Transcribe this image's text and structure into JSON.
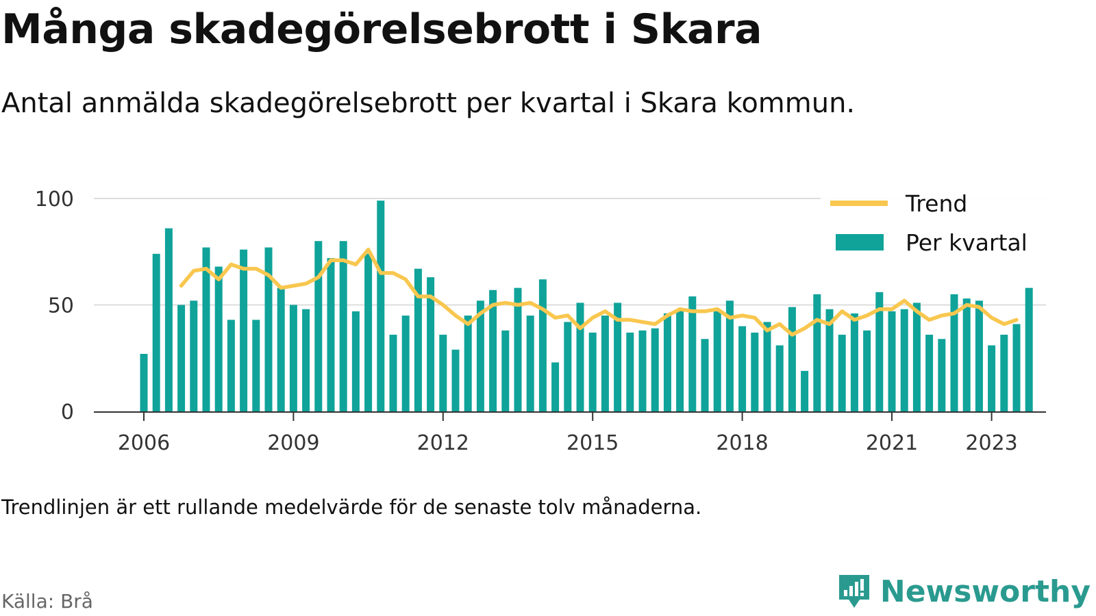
{
  "header": {
    "title": "Många skadegörelsebrott i Skara",
    "subtitle": "Antal anmälda skadegörelsebrott per kvartal i Skara kommun."
  },
  "footer": {
    "note": "Trendlinjen är ett rullande medelvärde för de senaste tolv månaderna.",
    "source": "Källa: Brå",
    "brand": "Newsworthy"
  },
  "colors": {
    "bars": "#0fa39a",
    "trend": "#f9c74f",
    "grid": "#dddddd",
    "axis": "#333333",
    "brand": "#2a9a8f"
  },
  "chart_data": {
    "type": "bar",
    "x_unit": "quarter",
    "x_start": "2006 Q1",
    "ylim": [
      0,
      100
    ],
    "yticks": [
      0,
      50,
      100
    ],
    "xticks": [
      "2006",
      "2009",
      "2012",
      "2015",
      "2018",
      "2021",
      "2023"
    ],
    "grid": "horizontal",
    "legend_position": "top-right",
    "series": [
      {
        "name": "Per kvartal",
        "type": "bar",
        "values": [
          27,
          74,
          86,
          50,
          52,
          77,
          68,
          43,
          76,
          43,
          77,
          58,
          50,
          48,
          80,
          72,
          80,
          47,
          74,
          99,
          36,
          45,
          67,
          63,
          36,
          29,
          45,
          52,
          57,
          38,
          58,
          45,
          62,
          23,
          42,
          51,
          37,
          45,
          51,
          37,
          38,
          39,
          46,
          48,
          54,
          34,
          47,
          52,
          40,
          37,
          42,
          31,
          49,
          19,
          55,
          48,
          36,
          46,
          38,
          56,
          47,
          48,
          51,
          36,
          34,
          55,
          53,
          52,
          31,
          36,
          41,
          58
        ]
      },
      {
        "name": "Trend",
        "type": "line",
        "start_index": 3,
        "values": [
          59,
          66,
          67,
          62,
          69,
          67,
          67,
          64,
          58,
          59,
          60,
          63,
          71,
          71,
          69,
          76,
          65,
          65,
          62,
          54,
          54,
          50,
          45,
          41,
          46,
          50,
          51,
          50,
          51,
          48,
          44,
          45,
          39,
          44,
          47,
          43,
          43,
          42,
          41,
          45,
          48,
          47,
          47,
          48,
          44,
          45,
          44,
          38,
          41,
          36,
          39,
          43,
          41,
          47,
          43,
          45,
          48,
          48,
          52,
          47,
          43,
          45,
          46,
          50,
          49,
          44,
          41,
          43
        ]
      }
    ]
  }
}
